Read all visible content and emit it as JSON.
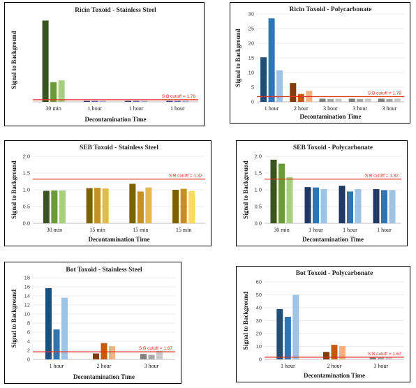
{
  "chart_data": [
    {
      "type": "bar",
      "title": "Ricin Toxoid - Stainless Steel",
      "xlabel": "Decontamination Time",
      "ylabel": "Signal to Background",
      "ylim": [
        0,
        70
      ],
      "yticks": [],
      "categories": [
        "30 min",
        "1 hour",
        "1 hour",
        "1 hour"
      ],
      "groups": [
        {
          "values": [
            68,
            16.5,
            18
          ],
          "colors": [
            "#3b5323",
            "#6b9a3a",
            "#a6cf80"
          ]
        },
        {
          "values": [
            0.8,
            0.8,
            0.8
          ],
          "colors": [
            "#2e3f7a",
            "#5568b0",
            "#9aa8d8"
          ]
        },
        {
          "values": [
            0.8,
            0.8,
            0.8
          ],
          "colors": [
            "#2e3f7a",
            "#5568b0",
            "#9aa8d8"
          ]
        },
        {
          "values": [
            0.8,
            0.8,
            0.8
          ],
          "colors": [
            "#2e3f7a",
            "#5568b0",
            "#9aa8d8"
          ]
        }
      ],
      "cutoff": {
        "value": 1.78,
        "label": "S:B cutoff = 1.78"
      }
    },
    {
      "type": "bar",
      "title": "Ricin Toxoid - Polycarbonate",
      "xlabel": "Decontamination Time",
      "ylabel": "Signal to Background",
      "ylim": [
        0,
        30
      ],
      "yticks": [
        0,
        5,
        10,
        15,
        20,
        25,
        30
      ],
      "categories": [
        "1 hour",
        "2 hour",
        "3 hour",
        "3 hour",
        "3 hour"
      ],
      "groups": [
        {
          "values": [
            15.2,
            28.5,
            10.8
          ],
          "colors": [
            "#1f4e79",
            "#2e75b6",
            "#9dc3e6"
          ]
        },
        {
          "values": [
            6.4,
            2.7,
            3.8
          ],
          "colors": [
            "#843c0c",
            "#c55a11",
            "#f4b183"
          ]
        },
        {
          "values": [
            1.1,
            1.0,
            1.1
          ],
          "colors": [
            "#808080",
            "#a6a6a6",
            "#c9c9c9"
          ]
        },
        {
          "values": [
            1.1,
            1.0,
            1.1
          ],
          "colors": [
            "#808080",
            "#a6a6a6",
            "#c9c9c9"
          ]
        },
        {
          "values": [
            1.1,
            1.0,
            1.1
          ],
          "colors": [
            "#808080",
            "#a6a6a6",
            "#c9c9c9"
          ]
        }
      ],
      "cutoff": {
        "value": 1.78,
        "label": "S:B cutoff = 1.78"
      }
    },
    {
      "type": "bar",
      "title": "SEB Toxoid - Stainless Steel",
      "xlabel": "Decontamination Time",
      "ylabel": "Signal to Background",
      "ylim": [
        0,
        2.0
      ],
      "yticks": [
        0,
        0.5,
        1.0,
        1.5,
        2.0
      ],
      "ytick_labels": [
        "0.0",
        "0.5",
        "1.0",
        "1.5",
        "2.0"
      ],
      "categories": [
        "30 min",
        "15 min",
        "15 min",
        "15 min"
      ],
      "groups": [
        {
          "values": [
            0.97,
            0.98,
            0.98
          ],
          "colors": [
            "#3b5323",
            "#6b9a3a",
            "#a6cf80"
          ]
        },
        {
          "values": [
            1.05,
            1.06,
            1.04
          ],
          "colors": [
            "#7f6000",
            "#c39022",
            "#e6b94e"
          ]
        },
        {
          "values": [
            1.18,
            0.95,
            1.07
          ],
          "colors": [
            "#7f6000",
            "#c39022",
            "#e6b94e"
          ]
        },
        {
          "values": [
            1.0,
            1.03,
            0.96
          ],
          "colors": [
            "#7f6000",
            "#c39022",
            "#ffd966"
          ]
        }
      ],
      "cutoff": {
        "value": 1.32,
        "label": "S:B cutoff = 1.32"
      }
    },
    {
      "type": "bar",
      "title": "SEB Toxoid - Polycarbonate",
      "xlabel": "Decontamination Time",
      "ylabel": "Signal to Background",
      "ylim": [
        0,
        2.0
      ],
      "yticks": [
        0,
        0.5,
        1.0,
        1.5,
        2.0
      ],
      "ytick_labels": [
        "0.0",
        "0.5",
        "1.0",
        "1.5",
        "2.0"
      ],
      "categories": [
        "30 min",
        "1 hour",
        "1 hour",
        "1 hour"
      ],
      "groups": [
        {
          "values": [
            1.9,
            1.78,
            1.38
          ],
          "colors": [
            "#3b5323",
            "#6b9a3a",
            "#a6cf80"
          ]
        },
        {
          "values": [
            1.08,
            1.07,
            1.02
          ],
          "colors": [
            "#203864",
            "#2e75b6",
            "#9dc3e6"
          ]
        },
        {
          "values": [
            1.12,
            0.95,
            1.02
          ],
          "colors": [
            "#203864",
            "#2e75b6",
            "#9dc3e6"
          ]
        },
        {
          "values": [
            1.02,
            0.99,
            0.99
          ],
          "colors": [
            "#203864",
            "#2e75b6",
            "#9dc3e6"
          ]
        }
      ],
      "cutoff": {
        "value": 1.32,
        "label": "S:B cutoff = 1.32"
      }
    },
    {
      "type": "bar",
      "title": "Bot Toxoid - Stainless Steel",
      "xlabel": "Decontamination Time",
      "ylabel": "Signal to Background",
      "ylim": [
        0,
        18
      ],
      "yticks": [
        0,
        2,
        4,
        6,
        8,
        10,
        12,
        14,
        16,
        18
      ],
      "categories": [
        "1 hour",
        "2 hour",
        "3 hour"
      ],
      "groups": [
        {
          "values": [
            15.7,
            6.6,
            13.6
          ],
          "colors": [
            "#1f4e79",
            "#2e75b6",
            "#9dc3e6"
          ]
        },
        {
          "values": [
            1.3,
            3.6,
            2.9
          ],
          "colors": [
            "#843c0c",
            "#c55a11",
            "#f4b183"
          ]
        },
        {
          "values": [
            1.2,
            1.0,
            1.9
          ],
          "colors": [
            "#808080",
            "#a6a6a6",
            "#c9c9c9"
          ]
        }
      ],
      "cutoff": {
        "value": 1.67,
        "label": "S:B cutoff = 1.67"
      }
    },
    {
      "type": "bar",
      "title": "Bot Toxoid - Polycarbonate",
      "xlabel": "Decontamination Time",
      "ylabel": "Signal to Background",
      "ylim": [
        0,
        60
      ],
      "yticks": [
        0,
        10,
        20,
        30,
        40,
        50,
        60
      ],
      "categories": [
        "1 hour",
        "2 hour",
        "3 hour"
      ],
      "groups": [
        {
          "values": [
            39,
            33,
            50
          ],
          "colors": [
            "#1f4e79",
            "#2e75b6",
            "#9dc3e6"
          ]
        },
        {
          "values": [
            5.8,
            11.3,
            10.3
          ],
          "colors": [
            "#843c0c",
            "#c55a11",
            "#f4b183"
          ]
        },
        {
          "values": [
            1.6,
            1.4,
            1.8
          ],
          "colors": [
            "#808080",
            "#a6a6a6",
            "#c9c9c9"
          ]
        }
      ],
      "cutoff": {
        "value": 1.67,
        "label": "S:B cutoff = 1.67"
      }
    }
  ]
}
